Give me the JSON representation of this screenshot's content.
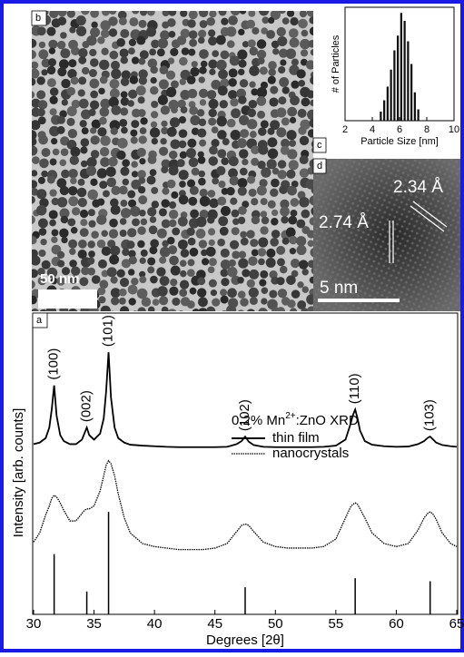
{
  "panel_labels": [
    "a",
    "b",
    "c",
    "d"
  ],
  "tem_image": {
    "scale_bar": "50 nm"
  },
  "hrtem_image": {
    "scale_bar": "5 nm",
    "spacings": [
      "2.74 Å",
      "2.34 Å"
    ]
  },
  "chart_data": [
    {
      "type": "histogram",
      "xlabel": "Particle Size [nm]",
      "ylabel": "# of Particles",
      "bins": [
        4.5,
        4.75,
        5,
        5.25,
        5.5,
        5.75,
        6,
        6.25,
        6.5,
        6.75,
        7,
        7.25,
        7.5
      ],
      "values": [
        8,
        18,
        30,
        45,
        62,
        75,
        95,
        88,
        70,
        50,
        25,
        10
      ],
      "color": "#111111",
      "xlim": [
        2,
        10
      ],
      "xticks": [
        2,
        4,
        6,
        8,
        10
      ],
      "ylim": [
        0,
        100
      ]
    },
    {
      "type": "line",
      "title": [
        "0.2% Mn",
        "2+",
        ":ZnO XRD"
      ],
      "xlabel": "Degrees [2θ]",
      "ylabel": "Intensity [arb. counts]",
      "x": [
        30,
        30.5,
        31,
        31.3,
        31.5,
        31.7,
        31.9,
        32.2,
        32.5,
        33,
        33.5,
        34,
        34.2,
        34.4,
        34.6,
        35,
        35.5,
        35.8,
        36,
        36.2,
        36.4,
        36.7,
        37,
        37.5,
        38,
        39,
        40,
        41,
        42,
        43,
        44,
        45,
        46,
        46.8,
        47.2,
        47.5,
        47.8,
        48.2,
        49,
        50,
        51,
        52,
        53,
        54,
        55,
        55.8,
        56.2,
        56.4,
        56.6,
        56.8,
        57,
        57.4,
        58,
        59,
        60,
        61,
        61.8,
        62.3,
        62.6,
        62.8,
        63,
        63.3,
        63.8,
        64.5,
        65
      ],
      "series": [
        {
          "name": "thin film",
          "color": "#000000",
          "style": "solid",
          "values": [
            56.5,
            57,
            58.5,
            62,
            68,
            76,
            66,
            59.5,
            57.5,
            56.5,
            56.5,
            58,
            60,
            62,
            59.5,
            58,
            60,
            65,
            74,
            87,
            72,
            62,
            58.5,
            57,
            56.3,
            56,
            55.8,
            55.6,
            55.5,
            55.5,
            55.5,
            55.5,
            55.6,
            56.5,
            57.5,
            59,
            57.3,
            56.2,
            55.6,
            55.5,
            55.5,
            55.5,
            55.5,
            55.6,
            56,
            58,
            63,
            66,
            68,
            65,
            61,
            57.5,
            56.3,
            55.8,
            55.6,
            55.7,
            56.5,
            57.5,
            58.6,
            59,
            58.2,
            57,
            56.2,
            55.8,
            55.6
          ]
        },
        {
          "name": "nanocrystals",
          "color": "#000000",
          "style": "dotted",
          "values": [
            24,
            27,
            33,
            36,
            38.5,
            39.5,
            39,
            37,
            34.5,
            31,
            31,
            33.5,
            34.5,
            35,
            35,
            36,
            41,
            46,
            49.5,
            51,
            50,
            46,
            40,
            32,
            27,
            23.5,
            22.5,
            22,
            21.5,
            21.5,
            21.5,
            22,
            23.5,
            27.5,
            29.5,
            30,
            29.5,
            27.5,
            24,
            22.5,
            22,
            22,
            22,
            22.5,
            25,
            32,
            35.5,
            36.5,
            37,
            36.5,
            35,
            32,
            27,
            23.5,
            22.5,
            23.5,
            28,
            32,
            33.5,
            34,
            33.5,
            31.5,
            27,
            23.5,
            22.5
          ]
        }
      ],
      "reference_peaks": {
        "labels": [
          "(100)",
          "(002)",
          "(101)",
          "(102)",
          "(110)",
          "(103)"
        ],
        "x": [
          31.7,
          34.4,
          36.2,
          47.5,
          56.6,
          62.8
        ],
        "values": [
          20,
          7.6,
          34,
          9,
          12,
          11
        ],
        "color": "#000000"
      },
      "xlim": [
        30,
        65
      ],
      "xticks": [
        30,
        35,
        40,
        45,
        50,
        55,
        60,
        65
      ],
      "ylim": [
        0,
        100
      ]
    }
  ]
}
